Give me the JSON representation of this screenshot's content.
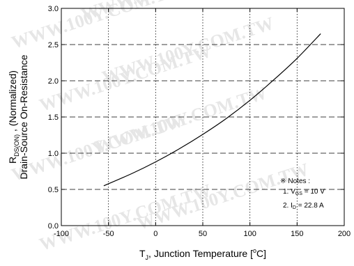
{
  "chart_data": {
    "type": "line",
    "xlabel": {
      "main": "T",
      "sub": "J",
      "rest": ", Junction Temperature [",
      "sup": "o",
      "end": "C]"
    },
    "ylabel": {
      "line1_main": "R",
      "line1_sub": "DS(ON)",
      "line1_rest": " , (Normalized)",
      "line2": "Drain-Source On-Resistance"
    },
    "xlim": [
      -100,
      200
    ],
    "ylim": [
      0.0,
      3.0
    ],
    "xticks": [
      "-100",
      "-50",
      "0",
      "50",
      "100",
      "150",
      "200"
    ],
    "yticks": [
      "0.0",
      "0.5",
      "1.0",
      "1.5",
      "2.0",
      "2.5",
      "3.0"
    ],
    "xtick_values": [
      -100,
      -50,
      0,
      50,
      100,
      150,
      200
    ],
    "ytick_values": [
      0.0,
      0.5,
      1.0,
      1.5,
      2.0,
      2.5,
      3.0
    ],
    "grid": {
      "vertical": "dotted",
      "horizontal": "dashed"
    },
    "series": [
      {
        "x": [
          -55,
          -25,
          0,
          25,
          50,
          75,
          100,
          125,
          150,
          175
        ],
        "y": [
          0.55,
          0.72,
          0.88,
          1.06,
          1.26,
          1.48,
          1.73,
          2.01,
          2.31,
          2.65
        ]
      }
    ],
    "notes": {
      "title": "Notes :",
      "symbol": "※",
      "note1_main": "1. V",
      "note1_sub": "GS",
      "note1_rest": " = 10 V",
      "note2_main": "2. I",
      "note2_sub": "D",
      "note2_rest": " = 22.8 A"
    }
  },
  "watermark": "WWW.100Y.COM.TW"
}
